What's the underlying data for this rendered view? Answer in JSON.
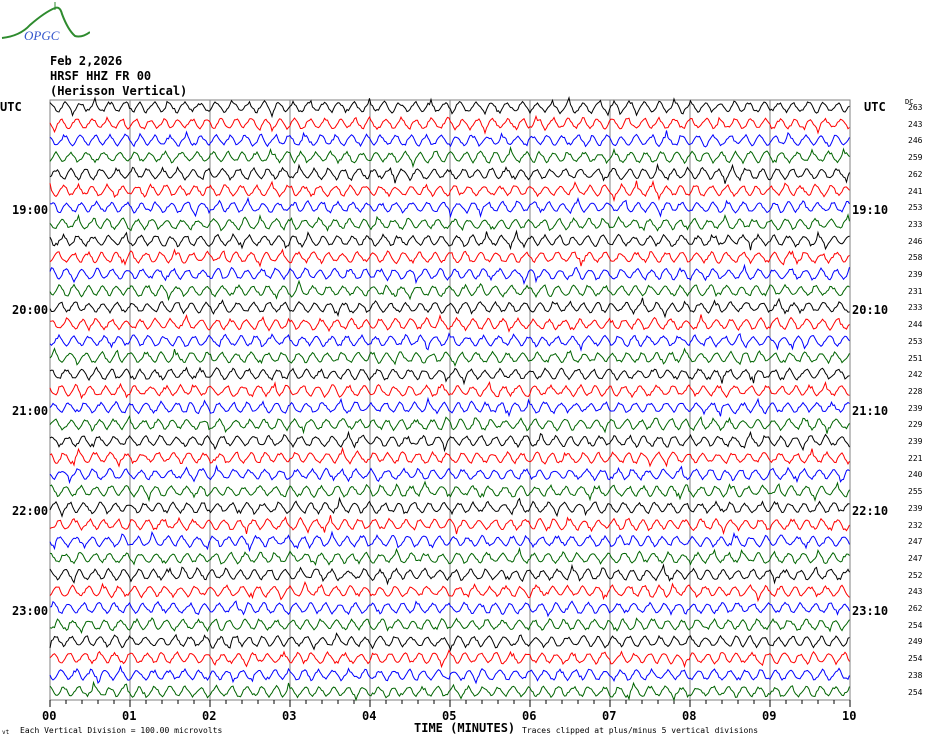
{
  "header": {
    "logo_text": "OPGC",
    "date": "Feb 2,2026",
    "station": "HRSF HHZ FR 00",
    "description": "(Herisson Vertical)"
  },
  "chart_data": {
    "type": "line",
    "title": "Feb 2,2026 HRSF HHZ FR 00 (Herisson Vertical)",
    "xlabel": "TIME (MINUTES)",
    "xlim": [
      0,
      10
    ],
    "x_ticks": [
      "00",
      "01",
      "02",
      "03",
      "04",
      "05",
      "06",
      "07",
      "08",
      "09",
      "10"
    ],
    "left_axis_title": "UTC",
    "right_axis_title": "UTC",
    "dc_header": "DC",
    "left_time_labels": [
      {
        "row": 6,
        "label": "19:00"
      },
      {
        "row": 12,
        "label": "20:00"
      },
      {
        "row": 18,
        "label": "21:00"
      },
      {
        "row": 24,
        "label": "22:00"
      },
      {
        "row": 30,
        "label": "23:00"
      }
    ],
    "right_time_labels": [
      {
        "row": 6,
        "label": "19:10"
      },
      {
        "row": 12,
        "label": "20:10"
      },
      {
        "row": 18,
        "label": "21:10"
      },
      {
        "row": 24,
        "label": "22:10"
      },
      {
        "row": 30,
        "label": "23:10"
      }
    ],
    "dc_offsets": [
      263,
      243,
      246,
      259,
      262,
      241,
      253,
      233,
      246,
      258,
      239,
      231,
      233,
      244,
      253,
      251,
      242,
      228,
      239,
      229,
      239,
      221,
      240,
      255,
      239,
      232,
      247,
      247,
      252,
      243,
      262,
      254,
      249,
      254,
      238,
      254
    ],
    "trace_colors": [
      "#000000",
      "#ff0000",
      "#0000ff",
      "#006400"
    ],
    "grid": true,
    "footer_left": "Each Vertical Division =  100.00 microvolts",
    "footer_right": "Traces clipped at plus/minus 5 vertical divisions",
    "footer_corner": "vt"
  }
}
